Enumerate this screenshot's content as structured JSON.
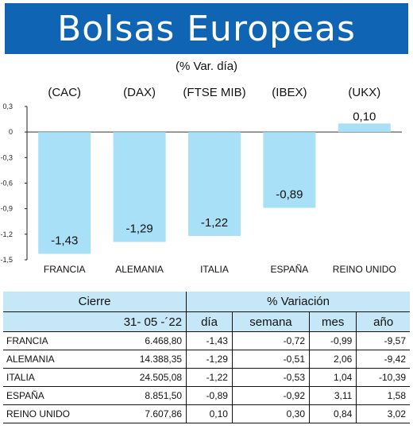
{
  "header": {
    "title": "Bolsas Europeas",
    "subtitle": "(% Var. día)"
  },
  "chart_data": {
    "type": "bar",
    "categories": [
      "FRANCIA",
      "ALEMANIA",
      "ITALIA",
      "ESPAÑA",
      "REINO UNIDO"
    ],
    "indices": [
      "(CAC)",
      "(DAX)",
      "(FTSE MIB)",
      "(IBEX)",
      "(UKX)"
    ],
    "values": [
      -1.43,
      -1.29,
      -1.22,
      -0.89,
      0.1
    ],
    "value_labels": [
      "-1,43",
      "-1,29",
      "-1,22",
      "-0,89",
      "0,10"
    ],
    "yticks": [
      "0,3",
      "0",
      "-0,3",
      "-0,6",
      "-0,9",
      "-1,2",
      "-1,5"
    ],
    "ylim": [
      -1.5,
      0.3
    ],
    "bar_color": "#a8e0f7"
  },
  "table": {
    "header_cierre": "Cierre",
    "header_variacion": "% Variación",
    "date": "31- 05 -´22",
    "subheaders": [
      "día",
      "semana",
      "mes",
      "año"
    ],
    "rows": [
      {
        "name": "FRANCIA",
        "cierre": "6.468,80",
        "dia": "-1,43",
        "semana": "-0,72",
        "mes": "-0,99",
        "anio": "-9,57"
      },
      {
        "name": "ALEMANIA",
        "cierre": "14.388,35",
        "dia": "-1,29",
        "semana": "-0,51",
        "mes": "2,06",
        "anio": "-9,42"
      },
      {
        "name": "ITALIA",
        "cierre": "24.505,08",
        "dia": "-1,22",
        "semana": "-0,53",
        "mes": "1,04",
        "anio": "-10,39"
      },
      {
        "name": "ESPAÑA",
        "cierre": "8.851,50",
        "dia": "-0,89",
        "semana": "-0,92",
        "mes": "3,11",
        "anio": "1,58"
      },
      {
        "name": "REINO UNIDO",
        "cierre": "7.607,86",
        "dia": "0,10",
        "semana": "0,30",
        "mes": "0,84",
        "anio": "3,02"
      }
    ]
  }
}
